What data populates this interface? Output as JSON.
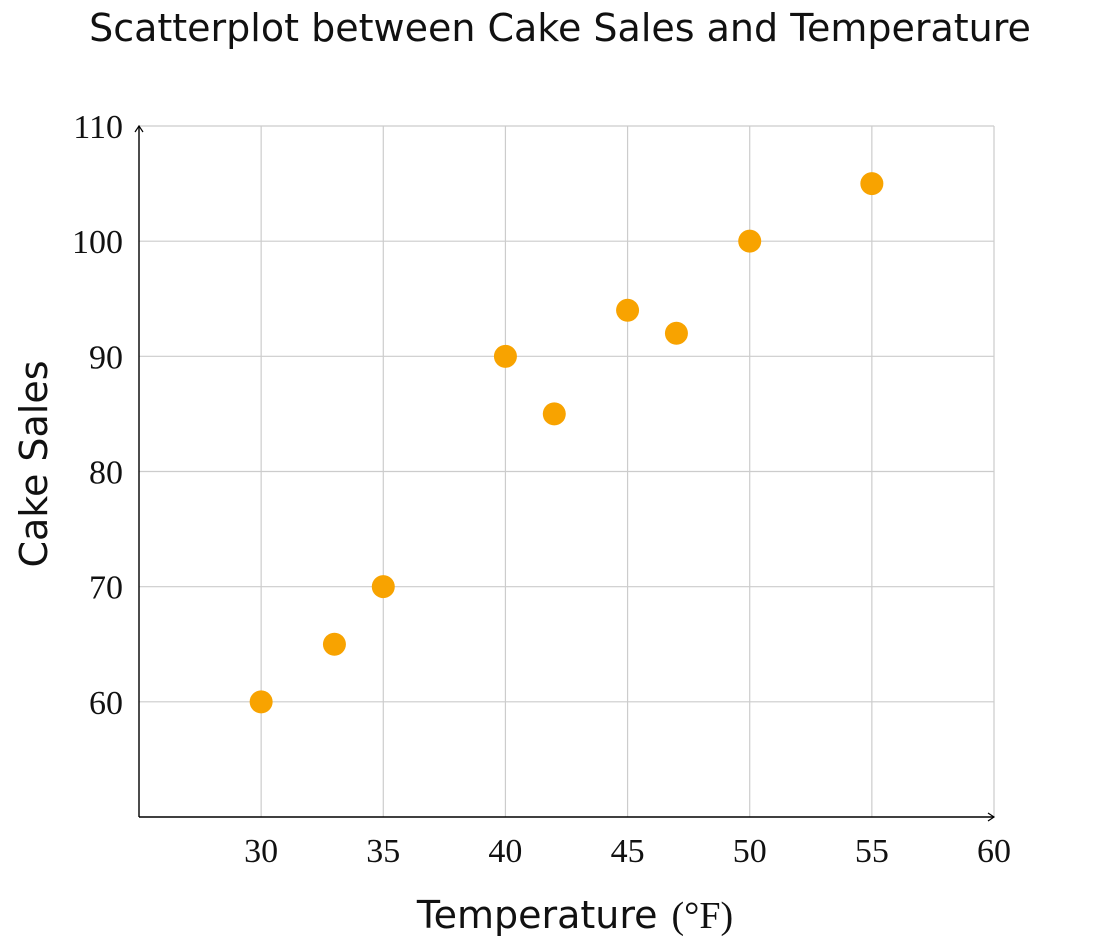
{
  "chart_data": {
    "type": "scatter",
    "title": "Scatterplot between Cake Sales and Temperature",
    "xlabel": "Temperature",
    "xlabel_unit": "(°F)",
    "ylabel": "Cake Sales",
    "xlim": [
      25,
      60
    ],
    "ylim": [
      50,
      110
    ],
    "xticks": [
      30,
      35,
      40,
      45,
      50,
      55,
      60
    ],
    "yticks": [
      60,
      70,
      80,
      90,
      100,
      110
    ],
    "grid": true,
    "marker_color": "#F8A300",
    "grid_color": "#CCCCCC",
    "axis_color": "#000000",
    "points": [
      {
        "x": 30,
        "y": 60
      },
      {
        "x": 33,
        "y": 65
      },
      {
        "x": 35,
        "y": 70
      },
      {
        "x": 40,
        "y": 90
      },
      {
        "x": 42,
        "y": 85
      },
      {
        "x": 45,
        "y": 94
      },
      {
        "x": 47,
        "y": 92
      },
      {
        "x": 50,
        "y": 100
      },
      {
        "x": 55,
        "y": 105
      }
    ]
  }
}
